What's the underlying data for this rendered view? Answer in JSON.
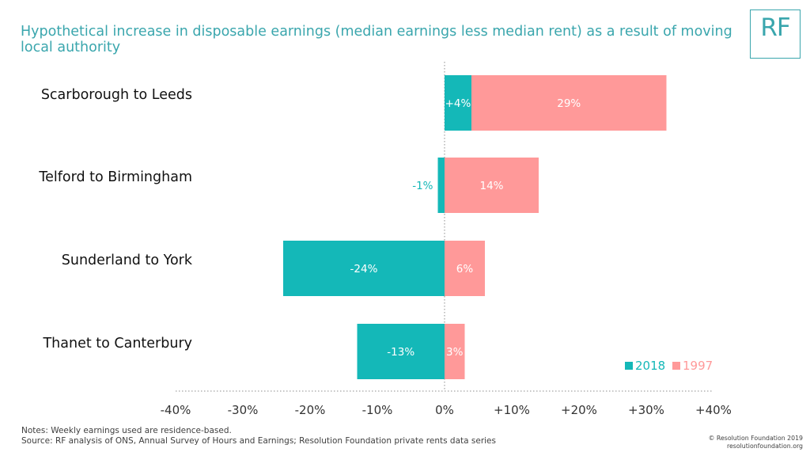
{
  "title": "Hypothetical increase in disposable earnings (median earnings less median rent) as a result of moving local authority",
  "logo_text": "RF",
  "chart_data": {
    "type": "bar",
    "orientation": "horizontal",
    "stacked": true,
    "categories": [
      "Scarborough to Leeds",
      "Telford to Birmingham",
      "Sunderland to York",
      "Thanet to Canterbury"
    ],
    "series": [
      {
        "name": "2018",
        "color": "#14b8b8",
        "values": [
          4,
          -1,
          -24,
          -13
        ],
        "labels": [
          "+4%",
          "-1%",
          "-24%",
          "-13%"
        ]
      },
      {
        "name": "1997",
        "color": "#ff9999",
        "values": [
          29,
          14,
          6,
          3
        ],
        "labels": [
          "29%",
          "14%",
          "6%",
          "3%"
        ]
      }
    ],
    "xlim": [
      -40,
      40
    ],
    "xticks": [
      -40,
      -30,
      -20,
      -10,
      0,
      10,
      20,
      30,
      40
    ],
    "xtick_labels": [
      "-40%",
      "-30%",
      "-20%",
      "-10%",
      "0%",
      "+10%",
      "+20%",
      "+30%",
      "+40%"
    ],
    "grid": false,
    "legend_position": "bottom-right"
  },
  "notes": {
    "line1": "Notes: Weekly earnings used are residence-based.",
    "line2": "Source: RF analysis of ONS, Annual Survey of Hours and Earnings; Resolution Foundation private rents data series"
  },
  "copyright": {
    "line1": "© Resolution Foundation 2019",
    "line2": "resolutionfoundation.org"
  }
}
